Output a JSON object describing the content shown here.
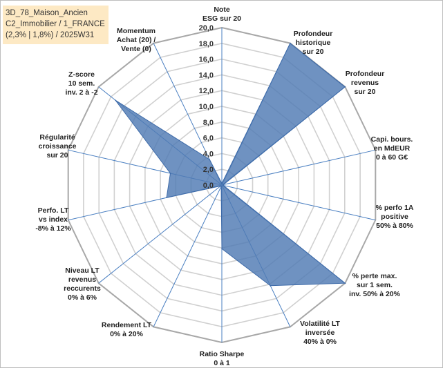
{
  "title_box": {
    "line1": "3D_78_Maison_Ancien",
    "line2": "C2_Immobilier / 1_FRANCE",
    "line3": "(2,3% | 1,8%) / 2025W31"
  },
  "colors": {
    "fill": "#4f7ab3",
    "stroke": "#3d6aa8",
    "grid": "#d0d0d0",
    "spoke": "#4a7fc1"
  },
  "chart_data": {
    "type": "radar",
    "rmin": 0,
    "rmax": 20,
    "tick_step": 2,
    "tick_labels": [
      "0,0",
      "2,0",
      "4,0",
      "6,0",
      "8,0",
      "10,0",
      "12,0",
      "14,0",
      "16,0",
      "18,0",
      "20,0"
    ],
    "grid": true,
    "axes": [
      {
        "label": [
          "Note",
          "ESG sur 20"
        ],
        "value": 0.2
      },
      {
        "label": [
          "Profondeur",
          "historique",
          "sur 20"
        ],
        "value": 20
      },
      {
        "label": [
          "Profondeur",
          "revenus",
          "sur 20"
        ],
        "value": 20
      },
      {
        "label": [
          "Capi. bours.",
          "en MdEUR",
          "0 à 60 G€"
        ],
        "value": 0.2
      },
      {
        "label": [
          "% perfo 1A",
          "positive",
          "50% à 80%"
        ],
        "value": 0.2
      },
      {
        "label": [
          "% perte max.",
          "sur 1 sem.",
          "inv. 50% à 20%"
        ],
        "value": 20
      },
      {
        "label": [
          "Volatilité LT",
          "inversée",
          "40% à 0%"
        ],
        "value": 14.2
      },
      {
        "label": [
          "Ratio Sharpe",
          "0 à 1"
        ],
        "value": 8.1
      },
      {
        "label": [
          "Rendement LT",
          "0% à 20%"
        ],
        "value": 0.2
      },
      {
        "label": [
          "Niveau LT",
          "revenus",
          "reccurents",
          "0% à 6%"
        ],
        "value": 0.2
      },
      {
        "label": [
          "Perfo. LT",
          "vs index",
          "-8% à 12%"
        ],
        "value": 7.2
      },
      {
        "label": [
          "Régularité",
          "croissance",
          "sur 20"
        ],
        "value": 6.7
      },
      {
        "label": [
          "Z-score",
          "10 sem.",
          "inv. 2 à -2"
        ],
        "value": 17.3
      },
      {
        "label": [
          "Momentum",
          "Achat (20) /",
          "Vente (0)"
        ],
        "value": 3.6
      }
    ]
  }
}
